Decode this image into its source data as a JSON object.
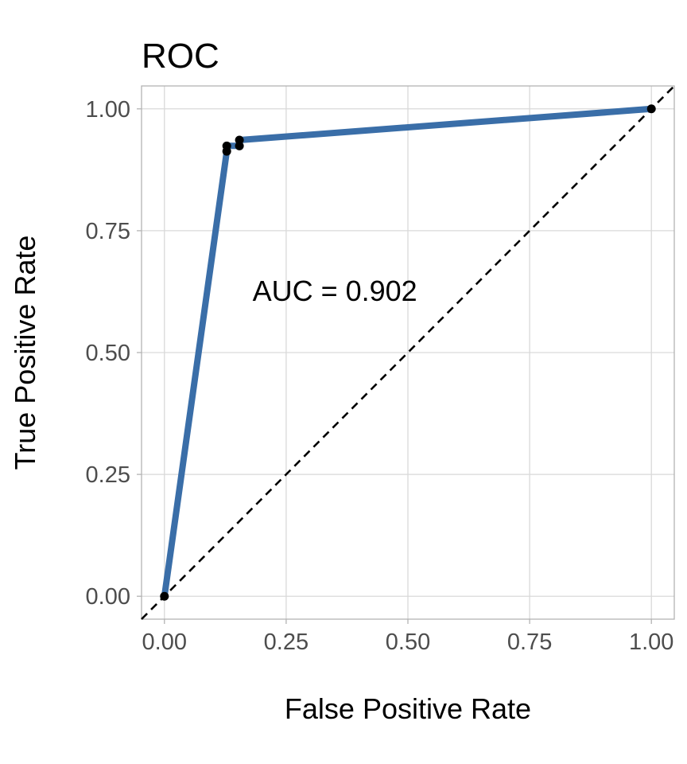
{
  "chart_data": {
    "type": "line",
    "title": "ROC",
    "xlabel": "False Positive Rate",
    "ylabel": "True Positive Rate",
    "xlim": [
      -0.047,
      1.047
    ],
    "ylim": [
      -0.047,
      1.047
    ],
    "x_ticks": [
      "0.00",
      "0.25",
      "0.50",
      "0.75",
      "1.00"
    ],
    "y_ticks": [
      "0.00",
      "0.25",
      "0.50",
      "0.75",
      "1.00"
    ],
    "grid": true,
    "series": [
      {
        "x": [
          0.0,
          0.128,
          0.128,
          0.154,
          0.154,
          1.0
        ],
        "y": [
          0.0,
          0.913,
          0.924,
          0.924,
          0.936,
          1.0
        ],
        "color": "#3A6EA8",
        "points": true
      }
    ],
    "reference_line": {
      "from": [
        0,
        0
      ],
      "to": [
        1,
        1
      ],
      "style": "dashed",
      "color": "#000000"
    },
    "annotation": {
      "text": "AUC = 0.902",
      "x": 0.35,
      "y": 0.6
    }
  }
}
